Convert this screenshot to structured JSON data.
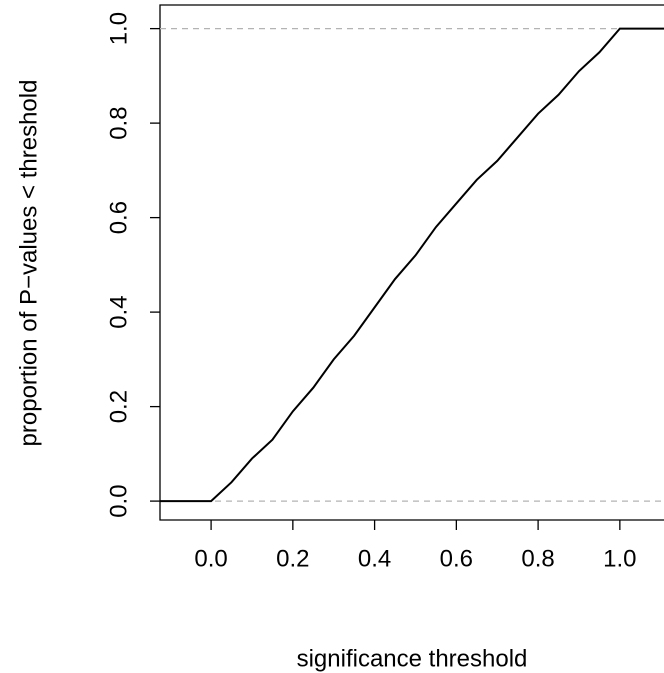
{
  "chart_data": {
    "type": "line",
    "xlabel": "significance threshold",
    "ylabel": "proportion of P−values < threshold",
    "x": [
      -0.125,
      0,
      0.05,
      0.1,
      0.15,
      0.2,
      0.25,
      0.3,
      0.35,
      0.4,
      0.45,
      0.5,
      0.55,
      0.6,
      0.65,
      0.7,
      0.75,
      0.8,
      0.85,
      0.9,
      0.95,
      1.0,
      1.108
    ],
    "values": [
      0,
      0,
      0.04,
      0.09,
      0.13,
      0.19,
      0.24,
      0.3,
      0.35,
      0.41,
      0.47,
      0.52,
      0.58,
      0.63,
      0.68,
      0.72,
      0.77,
      0.82,
      0.86,
      0.91,
      0.95,
      1.0,
      1.0
    ],
    "color": "#000000",
    "hlines": [
      0,
      1
    ],
    "hline_color": "#b3b3b3",
    "xlim": [
      -0.125,
      1.108
    ],
    "ylim": [
      -0.04,
      1.05
    ],
    "xticks": [
      {
        "value": 0,
        "label": "0.0"
      },
      {
        "value": 0.2,
        "label": "0.2"
      },
      {
        "value": 0.4,
        "label": "0.4"
      },
      {
        "value": 0.6,
        "label": "0.6"
      },
      {
        "value": 0.8,
        "label": "0.8"
      },
      {
        "value": 1,
        "label": "1.0"
      }
    ],
    "yticks": [
      {
        "value": 0,
        "label": "0.0"
      },
      {
        "value": 0.2,
        "label": "0.2"
      },
      {
        "value": 0.4,
        "label": "0.4"
      },
      {
        "value": 0.6,
        "label": "0.6"
      },
      {
        "value": 0.8,
        "label": "0.8"
      },
      {
        "value": 1,
        "label": "1.0"
      }
    ]
  }
}
